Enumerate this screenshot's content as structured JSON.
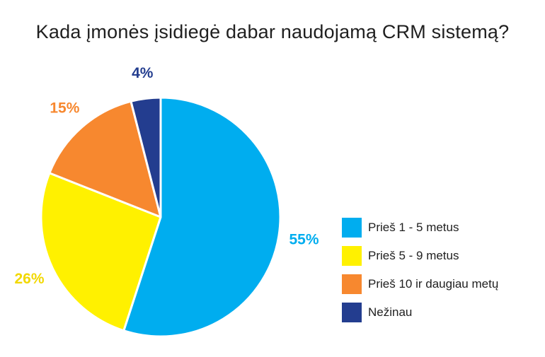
{
  "chart_data": {
    "type": "pie",
    "title": "Kada įmonės įsidiegė dabar naudojamą CRM sistemą?",
    "categories": [
      "Prieš 1 - 5 metus",
      "Prieš 5 - 9 metus",
      "Prieš 10 ir daugiau metų",
      "Nežinau"
    ],
    "values": [
      55,
      26,
      15,
      4
    ],
    "unit": "%",
    "data_labels": [
      "55%",
      "26%",
      "15%",
      "4%"
    ],
    "colors": [
      "#00adef",
      "#fff100",
      "#f7882f",
      "#233d8f"
    ],
    "legend_position": "right",
    "start_angle": "top",
    "direction": "clockwise"
  }
}
